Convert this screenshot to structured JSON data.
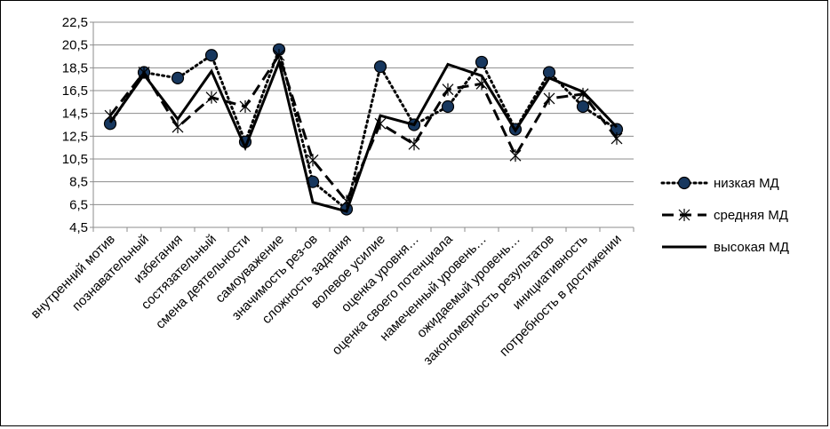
{
  "chart_data": {
    "type": "line",
    "title": "",
    "xlabel": "",
    "ylabel": "",
    "ylim": [
      4.5,
      22.5
    ],
    "ytick_step": 2,
    "yticks": [
      "4,5",
      "6,5",
      "8,5",
      "10,5",
      "12,5",
      "14,5",
      "16,5",
      "18,5",
      "20,5",
      "22,5"
    ],
    "grid": true,
    "legend_position": "right",
    "categories": [
      "внутренний мотив",
      "познавательный",
      "избегания",
      "состязательный",
      "смена деятельности",
      "самоуважение",
      "значимость рез-ов",
      "сложность задания",
      "волевое усилие",
      "оценка уровня…",
      "оценка своего потенциала",
      "намеченный уровень…",
      "ожидаемый уровень…",
      "закономерность результатов",
      "инициативность",
      "потребность в достижении"
    ],
    "series": [
      {
        "name": "низкая МД",
        "style": "dotted",
        "marker": "circle",
        "color": "#000000",
        "values": [
          13.6,
          18.1,
          17.6,
          19.6,
          12.0,
          20.1,
          8.5,
          6.1,
          18.6,
          13.5,
          15.1,
          19.0,
          13.1,
          18.1,
          15.1,
          13.1
        ]
      },
      {
        "name": "средняя МД",
        "style": "dashed",
        "marker": "star",
        "color": "#000000",
        "values": [
          14.3,
          18.1,
          13.3,
          15.9,
          15.1,
          19.6,
          10.4,
          6.8,
          13.6,
          11.8,
          16.6,
          17.1,
          10.8,
          15.8,
          16.2,
          12.3
        ]
      },
      {
        "name": "высокая МД",
        "style": "solid",
        "marker": "none",
        "color": "#000000",
        "values": [
          13.7,
          17.9,
          14.0,
          18.2,
          11.5,
          19.0,
          6.7,
          5.9,
          14.3,
          13.5,
          18.8,
          17.8,
          13.0,
          17.6,
          16.4,
          13.3
        ]
      }
    ]
  }
}
